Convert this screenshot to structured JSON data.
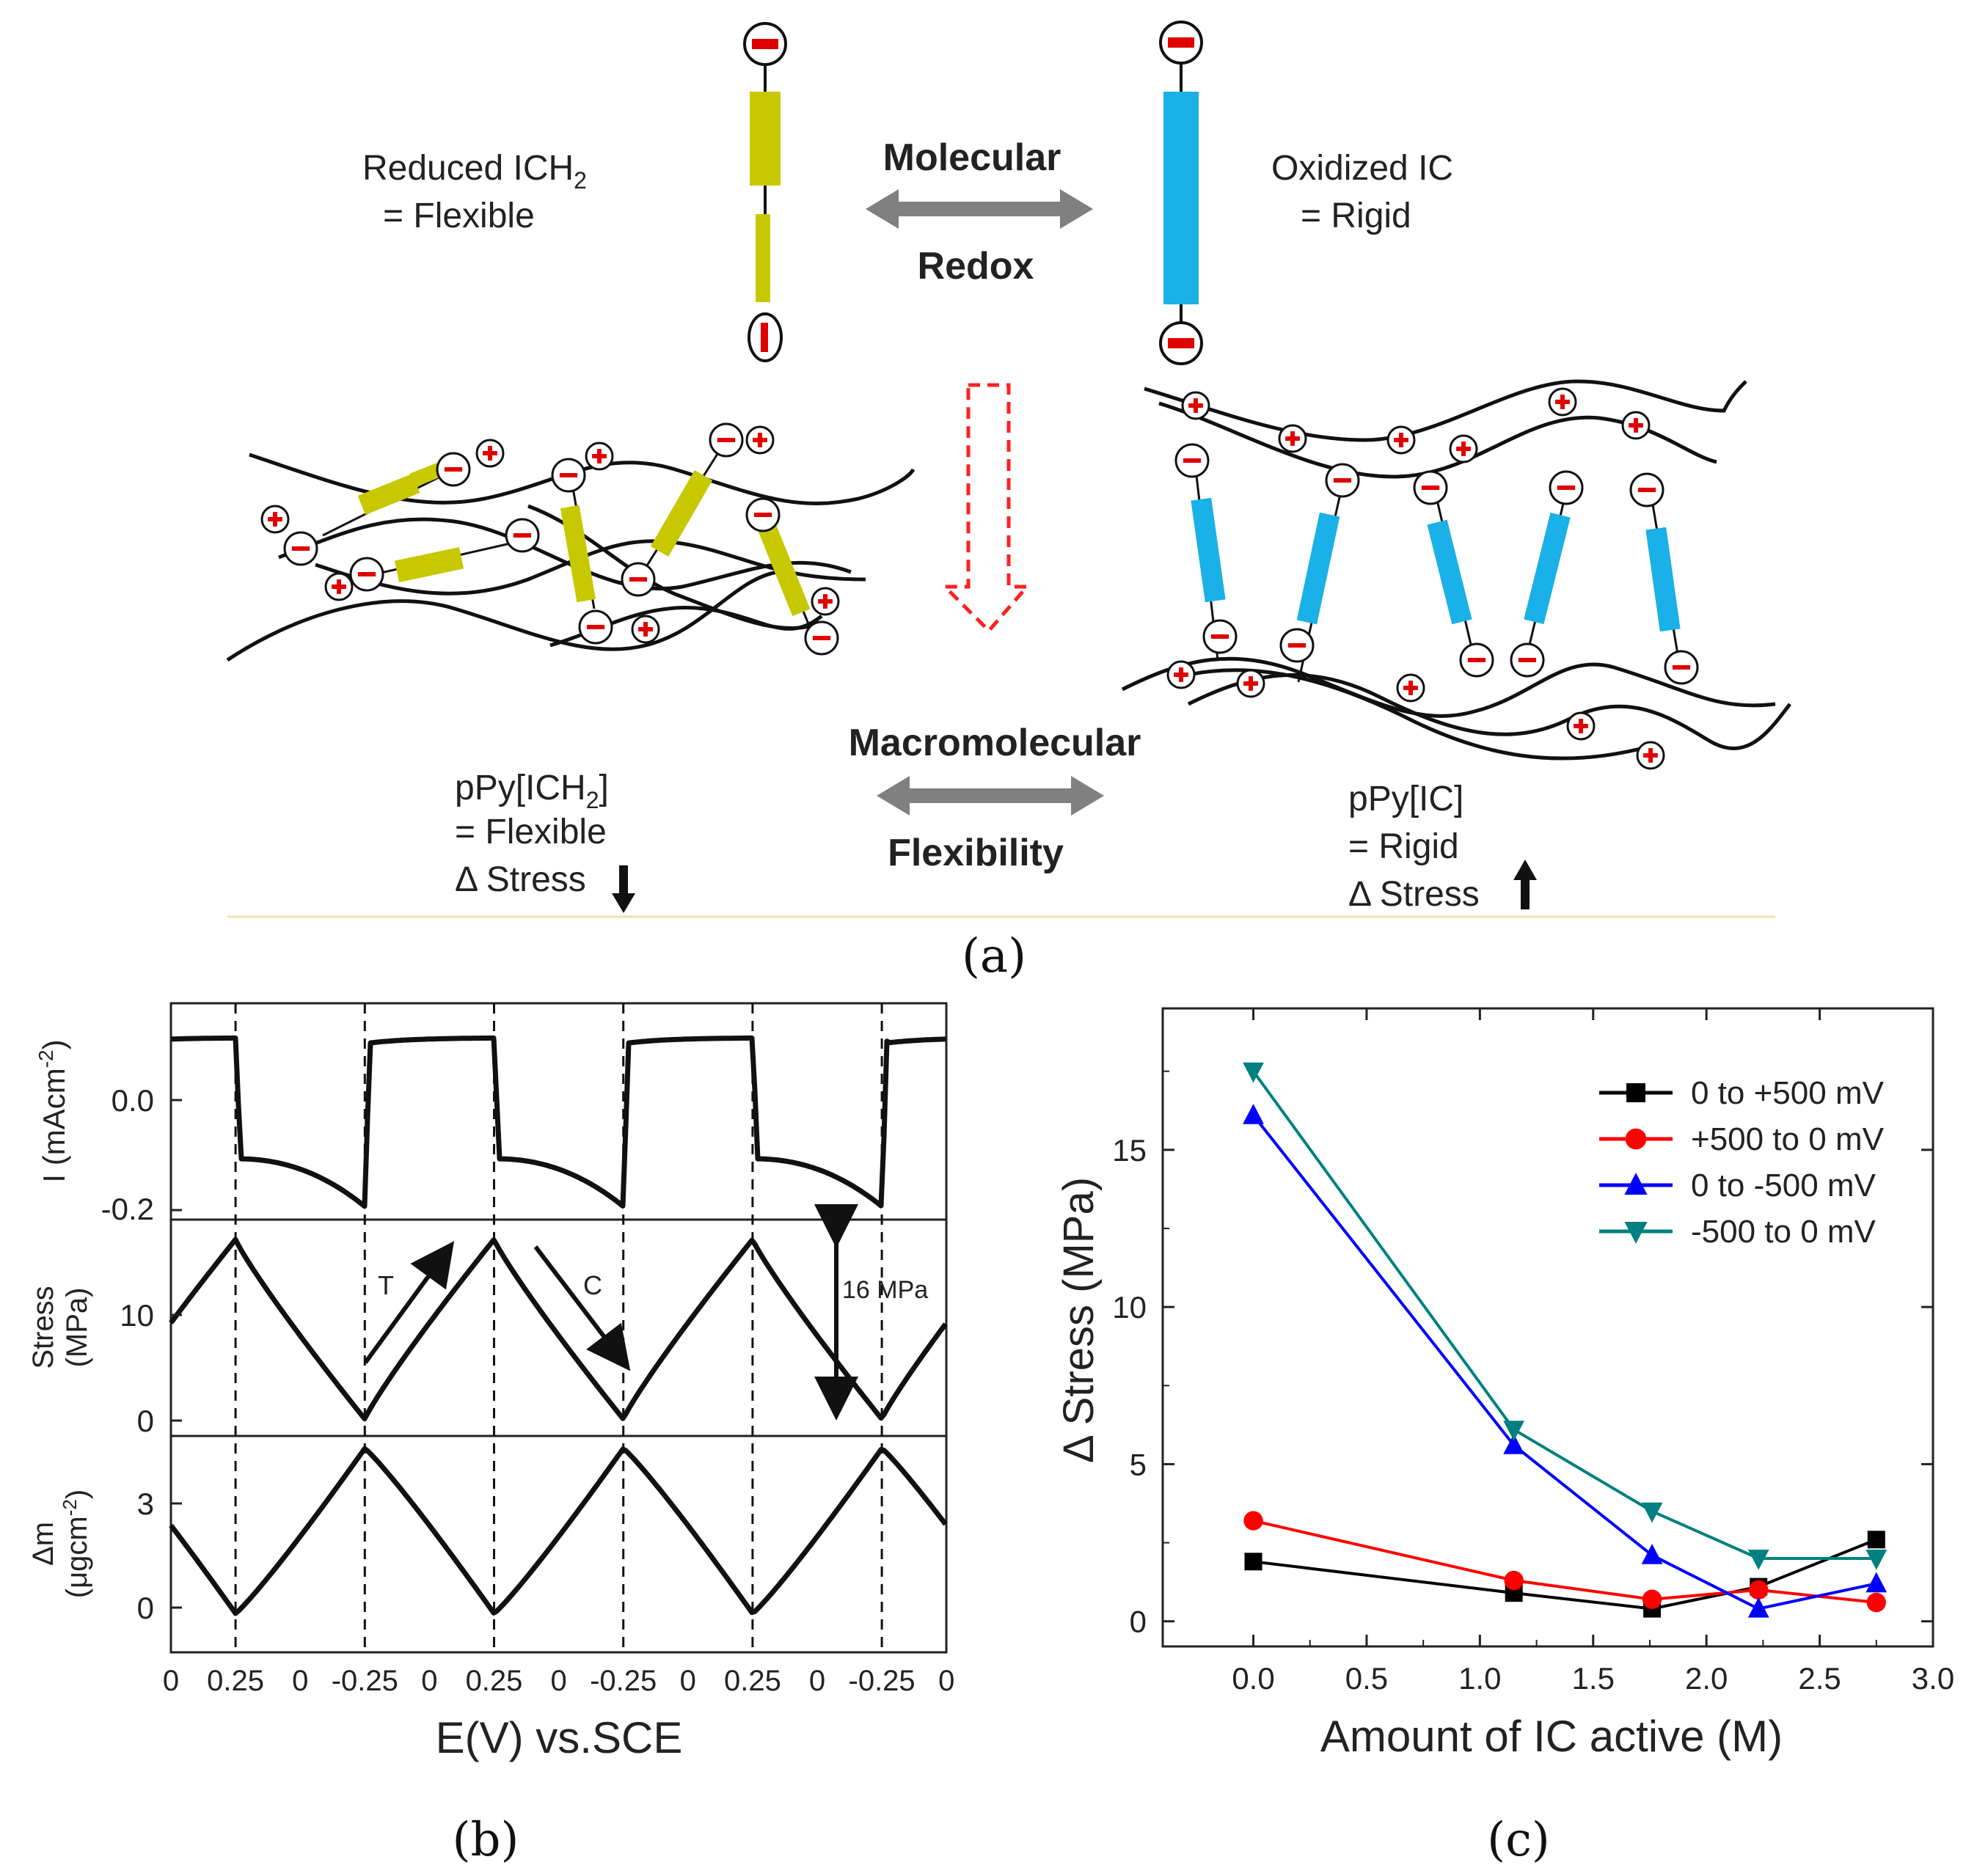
{
  "panel_a": {
    "label": "(a)",
    "reduced_line1": "Reduced  ICH",
    "reduced_sub": "2",
    "reduced_line2": "=  Flexible",
    "oxidized_line1": "Oxidized  IC",
    "oxidized_line2": "=  Rigid",
    "molecular": "Molecular",
    "redox": "Redox",
    "macromolecular": "Macromolecular",
    "flexibility": "Flexibility",
    "left_name": "pPy[ICH",
    "left_sub": "2",
    "left_name_end": "]",
    "left_eq": "=  Flexible",
    "left_stress": "Δ Stress",
    "right_name": "pPy[IC]",
    "right_eq": "= Rigid",
    "right_stress": "Δ Stress",
    "colors": {
      "reduced": "#c8c800",
      "oxidized": "#1ab0e8",
      "arrow": "#808080",
      "dashed_arrow": "#ff2020",
      "charge": "#e00000"
    }
  },
  "panel_b": {
    "label": "(b)",
    "xlabel": "E(V) vs.SCE",
    "x_ticks": [
      "0",
      "0.25",
      "0",
      "-0.25",
      "0",
      "0.25",
      "0",
      "-0.25",
      "0",
      "0.25",
      "0",
      "-0.25",
      "0"
    ],
    "current_ylabel": "I (mAcm",
    "current_ylabel_sup": "-2",
    "current_ylabel_end": ")",
    "current_ticks": [
      "0.0",
      "-0.2"
    ],
    "stress_ylabel1": "Stress",
    "stress_ylabel2": "(MPa)",
    "stress_ticks": [
      "10",
      "0"
    ],
    "mass_ylabel1": "Δm",
    "mass_ylabel2": "(μgcm",
    "mass_ylabel2_sup": "-2",
    "mass_ylabel2_end": ")",
    "mass_ticks": [
      "3",
      "0"
    ],
    "annot_T": "T",
    "annot_C": "C",
    "annot_16": "16 MPa"
  },
  "chart_data": {
    "type": "line",
    "title": "",
    "xlabel": "Amount of IC active (M)",
    "ylabel": "Δ Stress (MPa)",
    "xlim": [
      -0.4,
      3.0
    ],
    "ylim": [
      -0.8,
      19.5
    ],
    "x_ticks": [
      "0.0",
      "0.5",
      "1.0",
      "1.5",
      "2.0",
      "2.5",
      "3.0"
    ],
    "y_ticks": [
      "0",
      "5",
      "10",
      "15"
    ],
    "legend_position": "top-right",
    "label": "(c)",
    "series": [
      {
        "name": "0 to +500 mV",
        "color": "#000000",
        "marker": "square",
        "x": [
          0.0,
          1.15,
          1.76,
          2.23,
          2.75
        ],
        "y": [
          1.9,
          0.9,
          0.4,
          1.1,
          2.6
        ]
      },
      {
        "name": "+500 to 0 mV",
        "color": "#ff0000",
        "marker": "circle",
        "x": [
          0.0,
          1.15,
          1.76,
          2.23,
          2.75
        ],
        "y": [
          3.2,
          1.3,
          0.7,
          1.0,
          0.6
        ]
      },
      {
        "name": "0 to -500 mV",
        "color": "#0000ff",
        "marker": "triangle-up",
        "x": [
          0.0,
          1.15,
          1.76,
          2.23,
          2.75
        ],
        "y": [
          16.1,
          5.6,
          2.1,
          0.4,
          1.2
        ]
      },
      {
        "name": "-500 to 0 mV",
        "color": "#008080",
        "marker": "triangle-down",
        "x": [
          0.0,
          1.15,
          1.76,
          2.23,
          2.75
        ],
        "y": [
          17.5,
          6.1,
          3.5,
          2.0,
          2.0
        ]
      }
    ]
  }
}
